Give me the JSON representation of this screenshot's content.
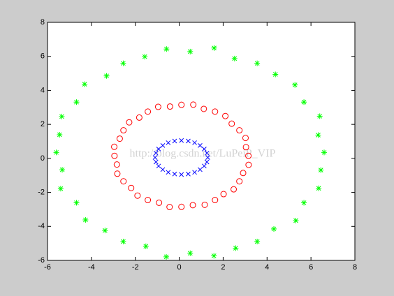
{
  "chart_data": {
    "type": "scatter",
    "xlim": [
      -6,
      8
    ],
    "ylim": [
      -6,
      8
    ],
    "xticks": [
      -6,
      -4,
      -2,
      0,
      2,
      4,
      6,
      8
    ],
    "yticks": [
      -6,
      -4,
      -2,
      0,
      2,
      4,
      6,
      8
    ],
    "watermark": "http://blog.csdn.net/LuPeiP_VIP",
    "series": [
      {
        "marker": "asterisk",
        "color": "#00ff00",
        "x": [
          6.6,
          6.33,
          6.4,
          5.68,
          5.27,
          4.38,
          3.55,
          2.52,
          1.59,
          0.5,
          -0.58,
          -1.57,
          -2.55,
          -3.31,
          -4.31,
          -4.68,
          -5.35,
          -5.45,
          -5.6,
          -5.33,
          -5.4,
          -4.68,
          -4.27,
          -3.38,
          -2.55,
          -1.52,
          -0.59,
          0.5,
          1.58,
          2.57,
          3.55,
          4.31,
          5.31,
          5.68,
          6.35,
          6.45
        ],
        "y": [
          0.35,
          1.37,
          2.48,
          3.31,
          4.32,
          4.94,
          5.59,
          5.87,
          6.49,
          6.28,
          6.43,
          5.98,
          5.59,
          4.85,
          4.36,
          3.31,
          2.46,
          1.39,
          0.35,
          -0.67,
          -1.78,
          -2.61,
          -3.62,
          -4.24,
          -4.89,
          -5.17,
          -5.79,
          -5.58,
          -5.73,
          -5.28,
          -4.89,
          -4.15,
          -3.66,
          -2.61,
          -1.76,
          -0.69
        ]
      },
      {
        "marker": "circle",
        "color": "#ff0000",
        "x": [
          3.15,
          3.04,
          3.02,
          2.74,
          2.39,
          2.1,
          1.63,
          1.12,
          0.64,
          0.1,
          -0.42,
          -0.96,
          -1.43,
          -1.82,
          -2.28,
          -2.54,
          -2.71,
          -2.96,
          -2.95,
          -2.84,
          -2.82,
          -2.54,
          -2.19,
          -1.9,
          -1.43,
          -0.92,
          -0.44,
          0.1,
          0.62,
          1.16,
          1.63,
          2.02,
          2.48,
          2.74,
          2.91,
          3.16
        ],
        "y": [
          0.15,
          0.66,
          1.2,
          1.65,
          2.04,
          2.49,
          2.75,
          2.91,
          3.16,
          3.15,
          3.05,
          3.03,
          2.75,
          2.4,
          2.12,
          1.65,
          1.16,
          0.68,
          0.15,
          -0.36,
          -0.9,
          -1.35,
          -1.74,
          -2.19,
          -2.45,
          -2.61,
          -2.86,
          -2.85,
          -2.75,
          -2.73,
          -2.45,
          -2.1,
          -1.82,
          -1.35,
          -0.86,
          -0.38
        ]
      },
      {
        "marker": "x",
        "color": "#0000ff",
        "x": [
          1.3,
          1.26,
          1.14,
          0.95,
          0.7,
          0.41,
          0.1,
          -0.21,
          -0.5,
          -0.75,
          -0.94,
          -1.06,
          -1.1,
          -1.06,
          -0.94,
          -0.75,
          -0.5,
          -0.21,
          0.1,
          0.41,
          0.7,
          0.95,
          1.14,
          1.26
        ],
        "y": [
          0.05,
          0.31,
          0.55,
          0.76,
          0.92,
          1.02,
          1.05,
          1.02,
          0.92,
          0.76,
          0.55,
          0.31,
          0.05,
          -0.21,
          -0.45,
          -0.66,
          -0.82,
          -0.92,
          -0.95,
          -0.92,
          -0.82,
          -0.66,
          -0.45,
          -0.21
        ]
      }
    ]
  }
}
